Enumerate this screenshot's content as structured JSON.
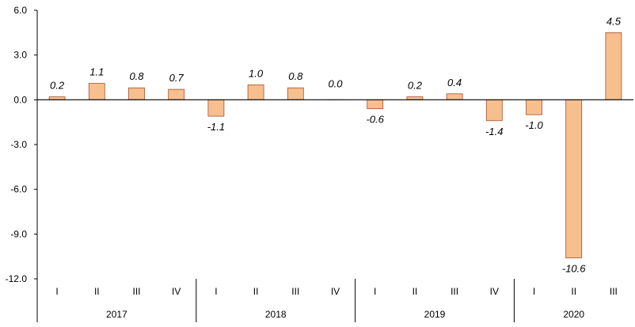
{
  "chart_data": {
    "type": "bar",
    "title": "",
    "xlabel": "",
    "ylabel": "",
    "ylim": [
      -12.0,
      6.0
    ],
    "yticks": [
      "6.0",
      "3.0",
      "0.0",
      "-3.0",
      "-6.0",
      "-9.0",
      "-12.0"
    ],
    "yticks_values": [
      6,
      3,
      0,
      -3,
      -6,
      -9,
      -12
    ],
    "grid": false,
    "legend": "none",
    "bar_color": "#f7be8e",
    "bar_edge_color": "#a0522d",
    "years": [
      "2017",
      "2018",
      "2019",
      "2020"
    ],
    "categories": [
      {
        "year": "2017",
        "quarter": "I"
      },
      {
        "year": "2017",
        "quarter": "II"
      },
      {
        "year": "2017",
        "quarter": "III"
      },
      {
        "year": "2017",
        "quarter": "IV"
      },
      {
        "year": "2018",
        "quarter": "I"
      },
      {
        "year": "2018",
        "quarter": "II"
      },
      {
        "year": "2018",
        "quarter": "III"
      },
      {
        "year": "2018",
        "quarter": "IV"
      },
      {
        "year": "2019",
        "quarter": "I"
      },
      {
        "year": "2019",
        "quarter": "II"
      },
      {
        "year": "2019",
        "quarter": "III"
      },
      {
        "year": "2019",
        "quarter": "IV"
      },
      {
        "year": "2020",
        "quarter": "I"
      },
      {
        "year": "2020",
        "quarter": "II"
      },
      {
        "year": "2020",
        "quarter": "III"
      }
    ],
    "values": [
      0.2,
      1.1,
      0.8,
      0.7,
      -1.1,
      1.0,
      0.8,
      0.0,
      -0.6,
      0.2,
      0.4,
      -1.4,
      -1.0,
      -10.6,
      4.5
    ],
    "value_labels": [
      "0.2",
      "1.1",
      "0.8",
      "0.7",
      "-1.1",
      "1.0",
      "0.8",
      "0.0",
      "-0.6",
      "0.2",
      "0.4",
      "-1.4",
      "-1.0",
      "-10.6",
      "4.5"
    ]
  }
}
